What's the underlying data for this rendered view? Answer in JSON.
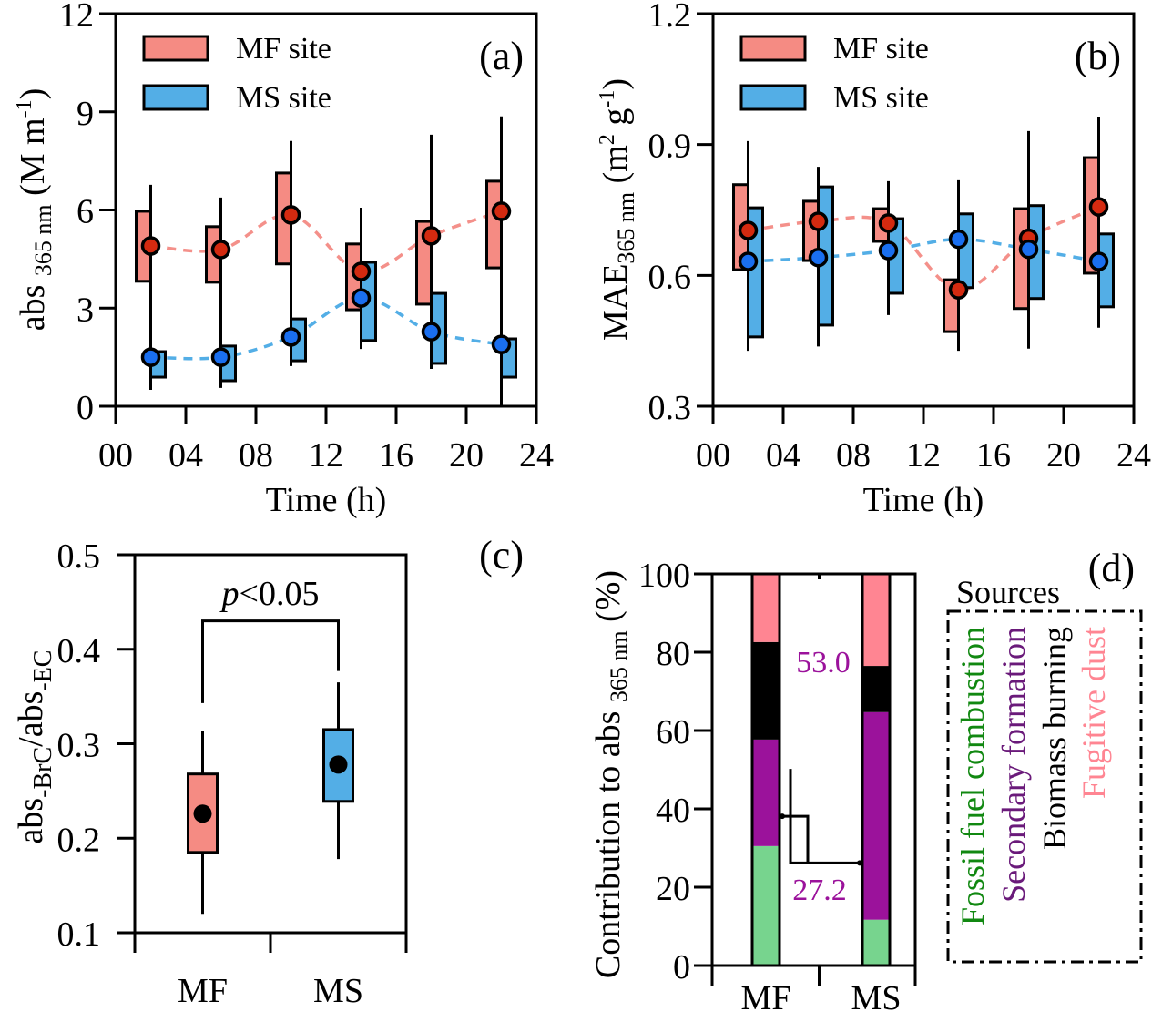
{
  "figure": {
    "panels": [
      "(a)",
      "(b)",
      "(c)",
      "(d)"
    ]
  },
  "colors": {
    "mf_box": "#f58b83",
    "ms_box": "#53aee6",
    "mf_dot": "#d42a10",
    "ms_dot": "#1a6ff0",
    "mf_line": "#f4908a",
    "ms_line": "#53aee6",
    "fossil": "#77d48e",
    "secondary": "#9b129b",
    "biomass": "#000000",
    "fugitive": "#ff8592",
    "fossil_text": "#118811",
    "secondary_text": "#6a1a7a",
    "biomass_text": "#000000",
    "fugitive_text": "#ff8592",
    "annotation_text": "#9b129b"
  },
  "chart_data": [
    {
      "panel": "(a)",
      "type": "box",
      "ylabel_main": "abs",
      "ylabel_sub": "365 nm",
      "ylabel_unit": "(M m",
      "ylabel_sup": "-1",
      "ylabel_close": ")",
      "xlabel": "Time (h)",
      "xlim": [
        0,
        24
      ],
      "ylim": [
        0,
        12
      ],
      "xticks": [
        0,
        4,
        8,
        12,
        16,
        20,
        24
      ],
      "xtick_labels": [
        "00",
        "04",
        "08",
        "12",
        "16",
        "20",
        "24"
      ],
      "yticks": [
        0,
        3,
        6,
        9,
        12
      ],
      "ytick_labels": [
        "0",
        "3",
        "6",
        "9",
        "12"
      ],
      "legend": [
        {
          "label": "MF site",
          "color_key": "mf_box"
        },
        {
          "label": "MS site",
          "color_key": "ms_box"
        }
      ],
      "legend_position": "top-left",
      "series": [
        {
          "name": "MF site",
          "x": [
            2,
            6,
            10,
            14,
            18,
            22
          ],
          "whisker_low": [
            2.95,
            3.12,
            3.62,
            1.75,
            1.14,
            0.0
          ],
          "q1": [
            3.82,
            3.79,
            4.35,
            2.95,
            3.12,
            4.23
          ],
          "q3": [
            5.96,
            5.49,
            7.13,
            4.96,
            5.65,
            6.88
          ],
          "whisker_high": [
            6.77,
            6.38,
            8.11,
            6.07,
            8.3,
            8.86
          ],
          "mean": [
            4.9,
            4.79,
            5.85,
            4.12,
            5.21,
            5.96
          ]
        },
        {
          "name": "MS site",
          "x": [
            2,
            6,
            10,
            14,
            18,
            22
          ],
          "whisker_low": [
            0.5,
            0.56,
            1.23,
            1.75,
            1.14,
            0.0
          ],
          "q1": [
            0.89,
            0.78,
            1.39,
            2.01,
            1.31,
            0.89
          ],
          "q3": [
            1.67,
            1.84,
            2.67,
            4.4,
            3.45,
            2.06
          ],
          "whisker_high": [
            2.48,
            2.4,
            2.95,
            6.07,
            8.3,
            8.86
          ],
          "mean": [
            1.5,
            1.5,
            2.12,
            3.31,
            2.28,
            1.89
          ]
        }
      ]
    },
    {
      "panel": "(b)",
      "type": "box",
      "ylabel_main": "MAE",
      "ylabel_sub": "365 nm",
      "ylabel_unit": "(m",
      "ylabel_sup": "2",
      "ylabel_unit2": " g",
      "ylabel_sup2": "-1",
      "ylabel_close": ")",
      "xlabel": "Time (h)",
      "xlim": [
        0,
        24
      ],
      "ylim": [
        0.3,
        1.2
      ],
      "xticks": [
        0,
        4,
        8,
        12,
        16,
        20,
        24
      ],
      "xtick_labels": [
        "00",
        "04",
        "08",
        "12",
        "16",
        "20",
        "24"
      ],
      "yticks": [
        0.3,
        0.6,
        0.9,
        1.2
      ],
      "ytick_labels": [
        "0.3",
        "0.6",
        "0.9",
        "1.2"
      ],
      "legend": [
        {
          "label": "MF site",
          "color_key": "mf_box"
        },
        {
          "label": "MS site",
          "color_key": "ms_box"
        }
      ],
      "legend_position": "top-left",
      "series": [
        {
          "name": "MF site",
          "x": [
            2,
            6,
            10,
            14,
            18,
            22
          ],
          "whisker_low": [
            0.427,
            0.437,
            0.509,
            0.427,
            0.432,
            0.48
          ],
          "q1": [
            0.613,
            0.634,
            0.678,
            0.471,
            0.524,
            0.605
          ],
          "q3": [
            0.808,
            0.77,
            0.753,
            0.59,
            0.753,
            0.87
          ],
          "whisker_high": [
            0.908,
            0.849,
            0.816,
            0.818,
            0.931,
            0.964
          ],
          "mean": [
            0.703,
            0.724,
            0.72,
            0.567,
            0.685,
            0.757
          ]
        },
        {
          "name": "MS site",
          "x": [
            2,
            6,
            10,
            14,
            18,
            22
          ],
          "whisker_low": [
            0.427,
            0.437,
            0.509,
            0.427,
            0.432,
            0.48
          ],
          "q1": [
            0.459,
            0.486,
            0.559,
            0.572,
            0.547,
            0.528
          ],
          "q3": [
            0.755,
            0.803,
            0.73,
            0.741,
            0.76,
            0.695
          ],
          "whisker_high": [
            0.908,
            0.849,
            0.816,
            0.818,
            0.931,
            0.964
          ],
          "mean": [
            0.632,
            0.641,
            0.657,
            0.683,
            0.66,
            0.632
          ]
        }
      ]
    },
    {
      "panel": "(c)",
      "type": "box",
      "ylabel_main": "abs",
      "ylabel_sub1": "-BrC",
      "ylabel_mid": "/abs",
      "ylabel_sub2": "-EC",
      "categories": [
        "MF",
        "MS"
      ],
      "ylim": [
        0.1,
        0.5
      ],
      "yticks": [
        0.1,
        0.2,
        0.3,
        0.4,
        0.5
      ],
      "ytick_labels": [
        "0.1",
        "0.2",
        "0.3",
        "0.4",
        "0.5"
      ],
      "series": [
        {
          "name": "MF",
          "color_key": "mf_box",
          "whisker_low": 0.12,
          "q1": 0.185,
          "q3": 0.268,
          "whisker_high": 0.313,
          "mean": 0.226
        },
        {
          "name": "MS",
          "color_key": "ms_box",
          "whisker_low": 0.178,
          "q1": 0.239,
          "q3": 0.315,
          "whisker_high": 0.365,
          "mean": 0.278
        }
      ],
      "significance": {
        "label_p": "p",
        "label_rest": "<0.05",
        "bracket_y": 0.43,
        "left_end": 0.343,
        "right_end": 0.377
      }
    },
    {
      "panel": "(d)",
      "type": "bar",
      "stacked": true,
      "ylabel_main": "Contribution to abs",
      "ylabel_sub": "365 nm",
      "ylabel_unit": "(%)",
      "categories": [
        "MF",
        "MS"
      ],
      "ylim": [
        0,
        100
      ],
      "yticks": [
        0,
        20,
        40,
        60,
        80,
        100
      ],
      "ytick_labels": [
        "0",
        "20",
        "40",
        "60",
        "80",
        "100"
      ],
      "legend_title": "Sources",
      "legend_position": "right",
      "series": [
        {
          "name": "Fossil fuel combustion",
          "color_key": "fossil",
          "text_color_key": "fossil_text",
          "values": [
            30.5,
            11.7
          ]
        },
        {
          "name": "Secondary formation",
          "color_key": "secondary",
          "text_color_key": "secondary_text",
          "values": [
            27.2,
            53.0
          ]
        },
        {
          "name": "Biomass burning",
          "color_key": "biomass",
          "text_color_key": "biomass_text",
          "values": [
            24.9,
            11.8
          ]
        },
        {
          "name": "Fugitive dust",
          "color_key": "fugitive",
          "text_color_key": "fugitive_text",
          "values": [
            17.4,
            23.5
          ]
        }
      ],
      "annotations": [
        {
          "text": "27.2",
          "category": "MF"
        },
        {
          "text": "53.0",
          "category": "MS"
        }
      ]
    }
  ]
}
